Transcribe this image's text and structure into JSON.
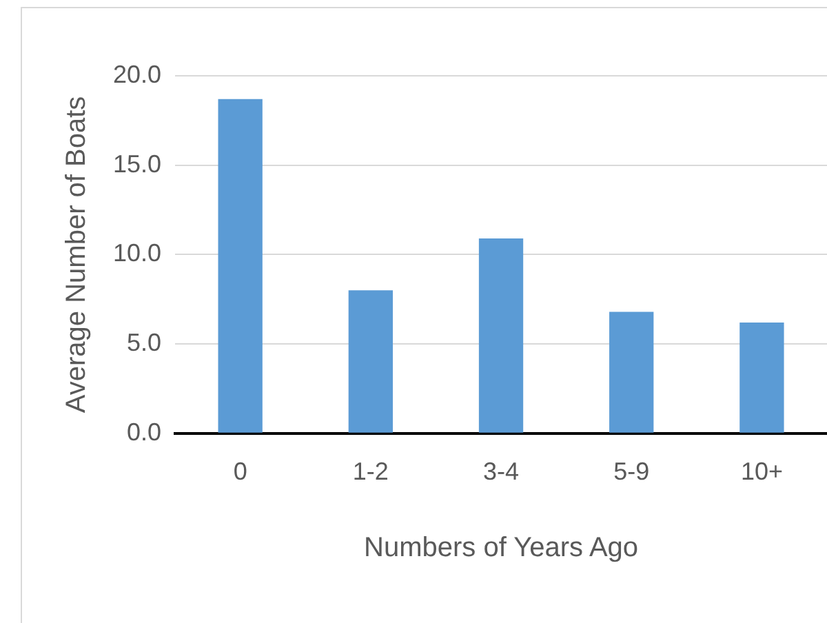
{
  "chart_data": {
    "type": "bar",
    "xlabel": "Numbers of Years Ago",
    "ylabel": "Average Number of Boats",
    "categories": [
      "0",
      "1-2",
      "3-4",
      "5-9",
      "10+"
    ],
    "values": [
      18.7,
      8.0,
      10.9,
      6.8,
      6.2
    ],
    "color": "#5b9bd5",
    "ylim": [
      0,
      20
    ],
    "yticks": [
      {
        "value": 0,
        "label": "0.0"
      },
      {
        "value": 5,
        "label": "5.0"
      },
      {
        "value": 10,
        "label": "10.0"
      },
      {
        "value": 15,
        "label": "15.0"
      },
      {
        "value": 20,
        "label": "20.0"
      }
    ],
    "grid": "y",
    "legend": false
  }
}
